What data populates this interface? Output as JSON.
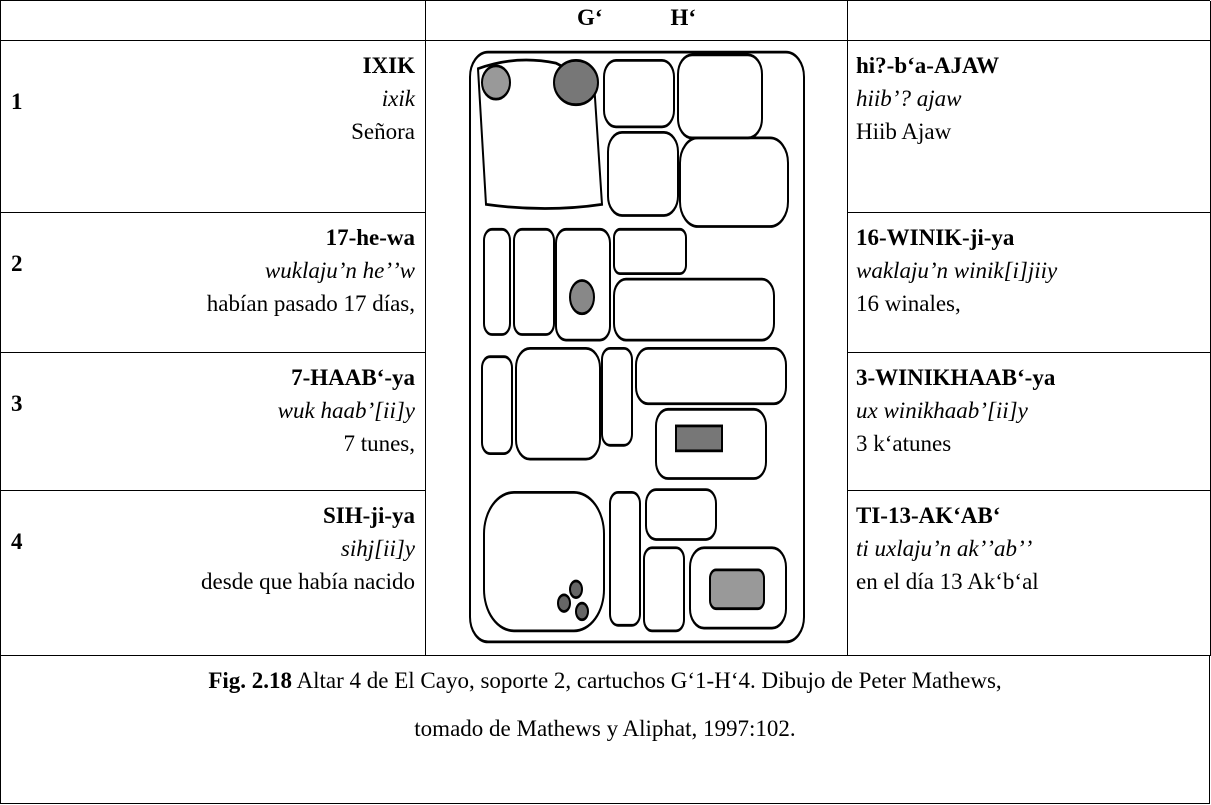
{
  "header": {
    "col2_left": "G‘",
    "col2_right": "H‘"
  },
  "rows": [
    {
      "number": "1",
      "left": [
        "IXIK",
        "ixik",
        "Señora"
      ],
      "right": [
        "hi?-b‘a-AJAW",
        "hiibʼ? ajaw",
        "Hiib Ajaw"
      ]
    },
    {
      "number": "2",
      "left": [
        "17-he-wa",
        "wuklajuʼn heʼʼw",
        "habían pasado 17 días,"
      ],
      "right": [
        "16-WINIK-ji-ya",
        "waklajuʼn winik[i]jiiy",
        "16 winales,"
      ]
    },
    {
      "number": "3",
      "left": [
        "7-HAAB‘-ya",
        "wuk haabʼ[ii]y",
        "7 tunes,"
      ],
      "right": [
        "3-WINIKHAAB‘-ya",
        "ux winikhaabʼ[ii]y",
        "3 k‘atunes"
      ]
    },
    {
      "number": "4",
      "left": [
        "SIH-ji-ya",
        "sihj[ii]y",
        "desde que había nacido"
      ],
      "right": [
        "TI-13-AK‘AB‘",
        "ti uxlajuʼn akʼʼabʼʼ",
        "en el día 13 Ak‘b‘al"
      ]
    }
  ],
  "caption": {
    "label": "Fig. 2.18",
    "text": "Altar 4 de El Cayo, soporte 2, cartuchos G‘1-H‘4. Dibujo de Peter Mathews,",
    "text2": "tomado de Mathews y Aliphat, 1997:102."
  }
}
